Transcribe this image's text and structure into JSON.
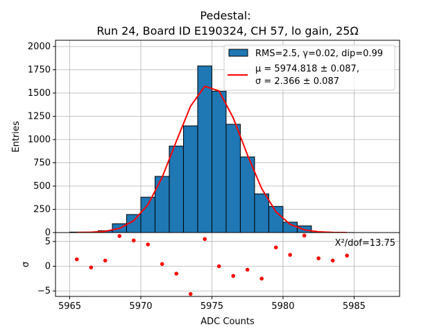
{
  "chart_data": {
    "type": "bar",
    "title_line1": "Pedestal:",
    "title_line2": "Run 24, Board ID E190324, CH 57, lo gain, 25Ω",
    "histogram": {
      "xlabel": "",
      "ylabel": "Entries",
      "bin_edges_start": 5965,
      "bin_width": 1,
      "counts": [
        5,
        5,
        20,
        95,
        194,
        380,
        604,
        930,
        1147,
        1791,
        1520,
        1164,
        813,
        416,
        281,
        112,
        72,
        3,
        1,
        1
      ],
      "ylim": [
        0,
        2067
      ],
      "yticks": [
        0,
        250,
        500,
        750,
        1000,
        1250,
        1500,
        1750,
        2000
      ],
      "ytick_labels": [
        "0",
        "250",
        "500",
        "750",
        "1000",
        "1250",
        "1500",
        "1750",
        "2000"
      ],
      "bar_color": "#1f77b4",
      "grid": true
    },
    "fit": {
      "mu": 5974.818,
      "sigma": 2.366,
      "color": "#ff0000"
    },
    "legend": {
      "placement": "top-right",
      "hist_label": "RMS=2.5, γ=0.02, dip=0.99",
      "fit_label_line1": "μ = 5974.818 ± 0.087,",
      "fit_label_line2": "σ = 2.366 ± 0.087"
    },
    "residuals": {
      "ylabel": "σ",
      "x": [
        5965.5,
        5966.5,
        5967.5,
        5968.5,
        5969.5,
        5970.5,
        5971.5,
        5972.5,
        5973.5,
        5974.5,
        5975.5,
        5976.5,
        5977.5,
        5978.5,
        5979.5,
        5980.5,
        5981.5,
        5982.5,
        5983.5,
        5984.5
      ],
      "y": [
        1.4,
        -0.25,
        1.15,
        6.1,
        5.2,
        4.4,
        0.45,
        -1.5,
        -5.6,
        5.5,
        0.0,
        -1.95,
        -0.7,
        -2.5,
        3.8,
        2.3,
        6.2,
        1.6,
        1.15,
        2.15
      ],
      "ylim": [
        -6.1,
        6.8
      ],
      "yticks": [
        -5,
        0,
        5
      ],
      "ytick_labels": [
        "−5",
        "0",
        "5"
      ],
      "annotation": "X²/dof=13.75",
      "color": "#ff0000"
    },
    "xaxis": {
      "label": "ADC Counts",
      "xlim": [
        5964.0,
        5988.2
      ],
      "ticks": [
        5965,
        5970,
        5975,
        5980,
        5985
      ],
      "tick_labels": [
        "5965",
        "5970",
        "5975",
        "5980",
        "5985"
      ]
    }
  }
}
